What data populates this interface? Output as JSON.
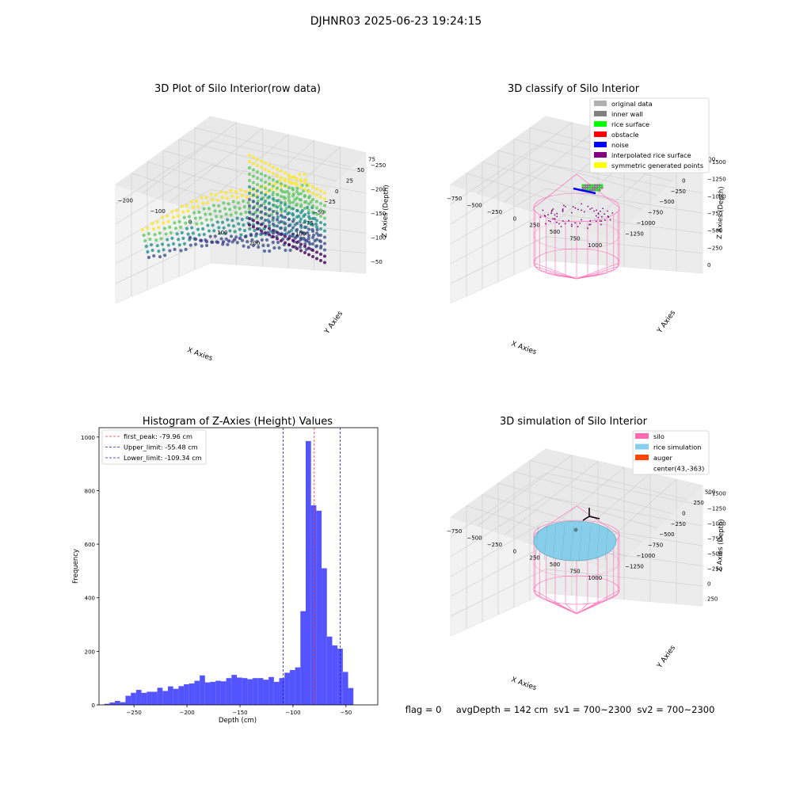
{
  "suptitle": "DJHNR03 2025-06-23 19:24:15",
  "footer": "flag = 0     avgDepth = 142 cm  sv1 = 700~2300  sv2 = 700~2300",
  "colors": {
    "hist_bar": "#4b4bff",
    "peak_line": "#ff3030",
    "limit_line": "#1f1fcf",
    "silo_pink": "#ff69b4",
    "rice_blue": "#87ceeb",
    "auger": "#ff4500"
  },
  "chart_data": [
    {
      "type": "scatter",
      "panel": "3d-raw",
      "title": "3D Plot of Silo Interior(row data)",
      "xlabel": "X Axies",
      "ylabel": "Y Axies",
      "zlabel": "Z Axies (Depth)",
      "x_ticks": [
        "−200",
        "−100",
        "0",
        "100",
        "200"
      ],
      "y_ticks": [
        "−100",
        "−75",
        "−50",
        "−25",
        "0",
        "25",
        "50",
        "75"
      ],
      "z_ticks": [
        "−50",
        "−100",
        "−150",
        "−200",
        "−250"
      ],
      "xlim": [
        -240,
        240
      ],
      "ylim": [
        -110,
        90
      ],
      "zlim": [
        -280,
        -20
      ],
      "colormap": "viridis"
    },
    {
      "type": "scatter",
      "panel": "3d-classify",
      "title": "3D classify of Silo Interior",
      "xlabel": "X Axies",
      "ylabel": "Y Axies",
      "zlabel": "Z Axies (Depth)",
      "x_ticks": [
        "−750",
        "−500",
        "−250",
        "0",
        "250",
        "500",
        "750",
        "1000"
      ],
      "y_ticks": [
        "−1250",
        "−1000",
        "−750",
        "−500",
        "−250",
        "0",
        "250",
        "500"
      ],
      "z_ticks": [
        "0",
        "−250",
        "−500",
        "−750",
        "−1000",
        "−1250",
        "−1500"
      ],
      "legend_position": "upper right",
      "legend": [
        {
          "label": "original data",
          "color": "#b0b0b0"
        },
        {
          "label": "inner wall",
          "color": "#808080"
        },
        {
          "label": "rice surface",
          "color": "#00ff00"
        },
        {
          "label": "obstacle",
          "color": "#ff0000"
        },
        {
          "label": "noise",
          "color": "#0000ff"
        },
        {
          "label": "interpolated rice surface",
          "color": "#800080"
        },
        {
          "label": "symmetric generated points",
          "color": "#ffff00"
        }
      ]
    },
    {
      "type": "bar",
      "panel": "histogram",
      "title": "Histogram of Z-Axies (Height) Values",
      "xlabel": "Depth (cm)",
      "ylabel": "Frequency",
      "xlim": [
        -283,
        -20
      ],
      "ylim": [
        0,
        1035
      ],
      "x_ticks": [
        -250,
        -200,
        -150,
        -100,
        -50
      ],
      "y_ticks": [
        0,
        200,
        400,
        600,
        800,
        1000
      ],
      "bin_start": -278,
      "bin_width": 5,
      "values": [
        4,
        9,
        15,
        10,
        34,
        45,
        56,
        45,
        49,
        49,
        64,
        52,
        69,
        60,
        70,
        77,
        80,
        90,
        110,
        84,
        86,
        90,
        88,
        100,
        112,
        102,
        100,
        96,
        100,
        100,
        94,
        104,
        86,
        100,
        120,
        130,
        140,
        350,
        985,
        745,
        725,
        510,
        255,
        222,
        210,
        123,
        63
      ],
      "vlines": [
        {
          "label": "first_peak: -79.96 cm",
          "x": -79.96,
          "role": "peak"
        },
        {
          "label": "Upper_limit: -55.48 cm",
          "x": -55.48,
          "role": "limit"
        },
        {
          "label": "Lower_limit: -109.34 cm",
          "x": -109.34,
          "role": "limit"
        }
      ],
      "legend_position": "upper left"
    },
    {
      "type": "scatter",
      "panel": "3d-simulation",
      "title": "3D simulation of Silo Interior",
      "xlabel": "X Axies",
      "ylabel": "Y Axies",
      "zlabel": "Z Axies (Depth)",
      "x_ticks": [
        "−750",
        "−500",
        "−250",
        "0",
        "250",
        "500",
        "750",
        "1000"
      ],
      "y_ticks": [
        "−1250",
        "−1000",
        "−750",
        "−500",
        "−250",
        "0",
        "250",
        "500"
      ],
      "z_ticks": [
        "250",
        "0",
        "−250",
        "−500",
        "−750",
        "−1000",
        "−1250",
        "−1500"
      ],
      "legend_position": "upper right",
      "legend": [
        {
          "label": "silo",
          "color": "#ff69b4"
        },
        {
          "label": "rice simulation",
          "color": "#87ceeb"
        },
        {
          "label": "auger",
          "color": "#ff4500"
        },
        {
          "label": "center(43,-363)",
          "color": ""
        }
      ]
    }
  ]
}
